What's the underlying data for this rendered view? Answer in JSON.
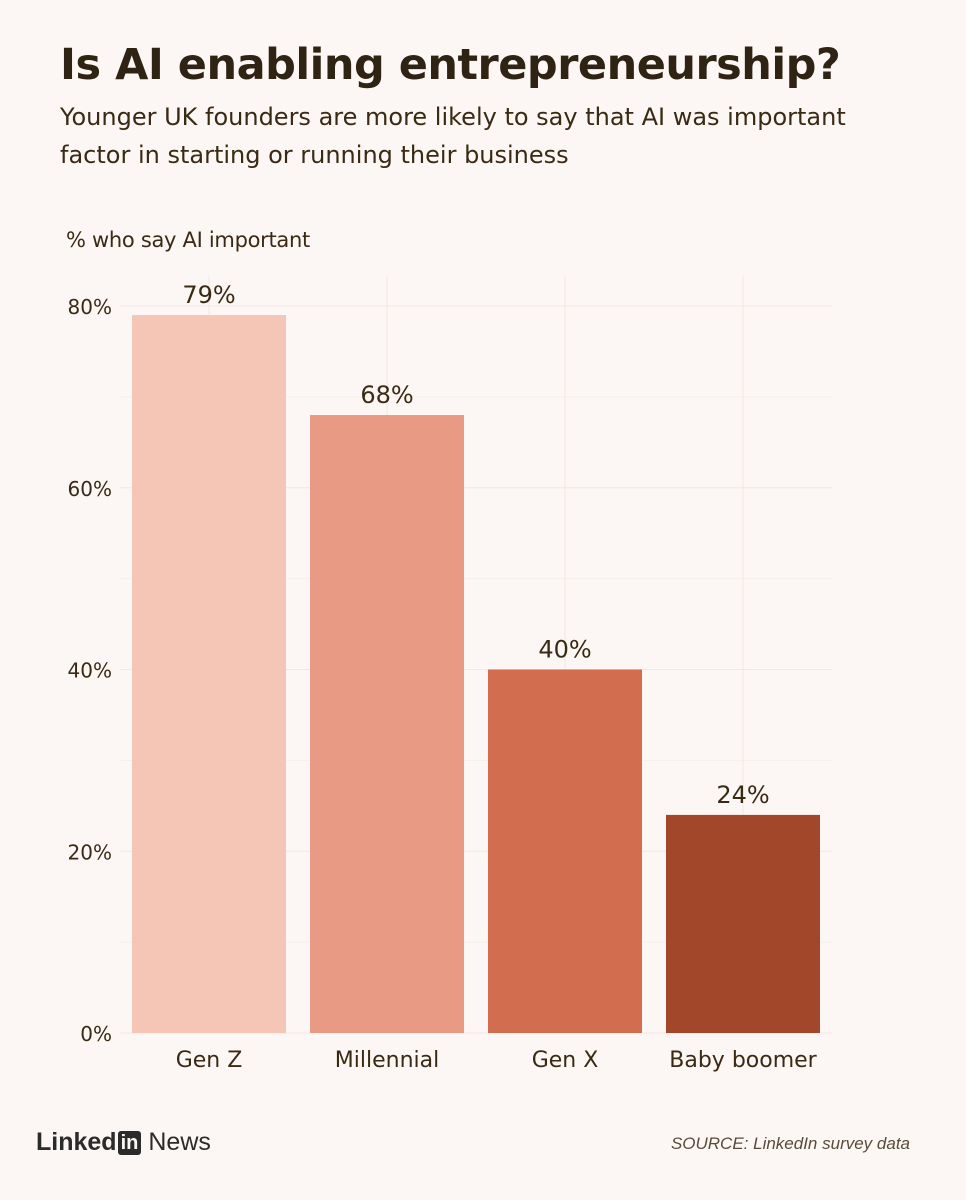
{
  "header": {
    "title": "Is AI enabling entrepreneurship?",
    "subtitle": "Younger UK founders are more likely to say that AI was important factor in starting or running their business"
  },
  "chart_data": {
    "type": "bar",
    "ylabel": "% who say AI important",
    "categories": [
      "Gen Z",
      "Millennial",
      "Gen X",
      "Baby boomer"
    ],
    "values": [
      79,
      68,
      40,
      24
    ],
    "value_labels": [
      "79%",
      "68%",
      "40%",
      "24%"
    ],
    "colors": [
      "#f5c5b5",
      "#e99a84",
      "#d36d4f",
      "#a3472b"
    ],
    "ylim": [
      0,
      80
    ],
    "yticks": [
      0,
      20,
      40,
      60,
      80
    ],
    "ytick_labels": [
      "0%",
      "20%",
      "40%",
      "60%",
      "80%"
    ],
    "grid": true
  },
  "footer": {
    "brand_prefix": "Linked",
    "brand_box": "in",
    "brand_suffix": "News",
    "source": "SOURCE: LinkedIn survey data"
  }
}
